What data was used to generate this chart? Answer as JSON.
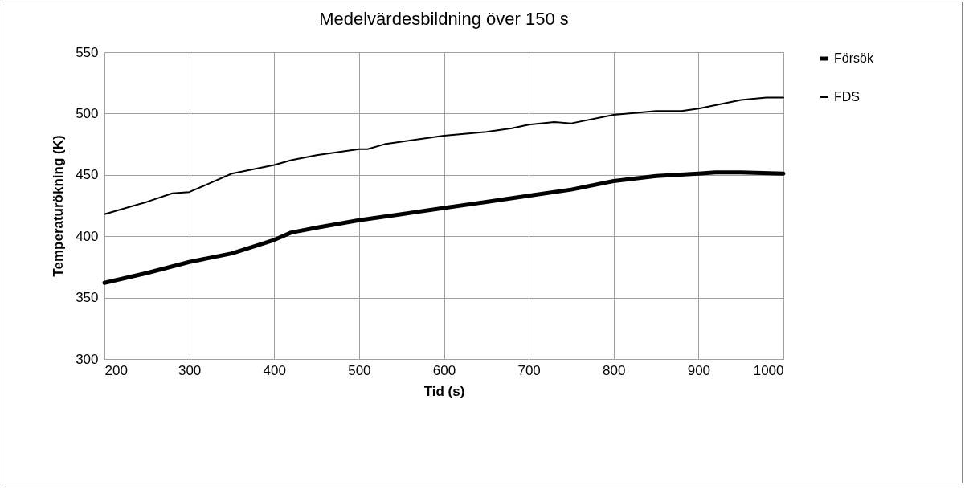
{
  "chart_data": {
    "type": "line",
    "title": "Medelvärdesbildning över 150 s",
    "xlabel": "Tid (s)",
    "ylabel": "Temperaturökning (K)",
    "xlim": [
      200,
      1000
    ],
    "xticks": [
      200,
      300,
      400,
      500,
      600,
      700,
      800,
      900,
      1000
    ],
    "ylim": [
      300,
      550
    ],
    "yticks": [
      300,
      350,
      400,
      450,
      500,
      550
    ],
    "grid": true,
    "legend": "right",
    "series": [
      {
        "name": "Försök",
        "color": "#000000",
        "x": [
          200,
          250,
          300,
          350,
          400,
          420,
          450,
          500,
          550,
          600,
          650,
          700,
          750,
          800,
          850,
          900,
          920,
          950,
          1000
        ],
        "values": [
          362,
          370,
          379,
          386,
          397,
          403,
          407,
          413,
          418,
          423,
          428,
          433,
          438,
          445,
          449,
          451,
          452,
          452,
          451
        ]
      },
      {
        "name": "FDS",
        "color": "#000000",
        "x": [
          200,
          250,
          280,
          300,
          350,
          400,
          420,
          450,
          500,
          510,
          530,
          600,
          650,
          680,
          700,
          730,
          750,
          800,
          850,
          880,
          900,
          950,
          980,
          1000
        ],
        "values": [
          418,
          428,
          435,
          436,
          451,
          458,
          462,
          466,
          471,
          471,
          475,
          482,
          485,
          488,
          491,
          493,
          492,
          499,
          502,
          502,
          504,
          511,
          513,
          513
        ]
      }
    ]
  }
}
